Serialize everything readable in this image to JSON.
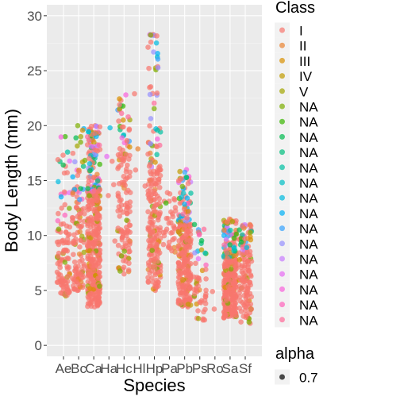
{
  "chart_data": {
    "type": "scatter",
    "subtype": "jitter",
    "xlabel": "Species",
    "ylabel": "Body Length (mm)",
    "ylim": [
      -1,
      31
    ],
    "y_ticks": [
      0,
      5,
      10,
      15,
      20,
      25,
      30
    ],
    "categories": [
      "Ae",
      "Bc",
      "Ca",
      "Ha",
      "Hc",
      "Hl",
      "Hp",
      "Pa",
      "Pb",
      "Ps",
      "Ro",
      "Sa",
      "Sf"
    ],
    "grid": true,
    "point_alpha": 0.7,
    "species": [
      {
        "code": "Ae",
        "n": 110,
        "min": 4.5,
        "max": 19.0,
        "q1": 6.0,
        "median": 8.0,
        "q3": 11.0
      },
      {
        "code": "Bc",
        "n": 120,
        "min": 5.0,
        "max": 20.0,
        "q1": 6.5,
        "median": 9.0,
        "q3": 13.0
      },
      {
        "code": "Ca",
        "n": 420,
        "min": 3.5,
        "max": 20.0,
        "q1": 6.5,
        "median": 9.5,
        "q3": 14.0
      },
      {
        "code": "Ha",
        "n": 6,
        "min": 9.5,
        "max": 19.8,
        "q1": 10.0,
        "median": 15.0,
        "q3": 17.0
      },
      {
        "code": "Hc",
        "n": 140,
        "min": 6.5,
        "max": 22.8,
        "q1": 10.0,
        "median": 14.0,
        "q3": 18.0
      },
      {
        "code": "Hl",
        "n": 4,
        "min": 14.5,
        "max": 22.9,
        "q1": 15.0,
        "median": 18.0,
        "q3": 20.0
      },
      {
        "code": "Hp",
        "n": 230,
        "min": 5.0,
        "max": 28.3,
        "q1": 9.0,
        "median": 12.0,
        "q3": 16.0
      },
      {
        "code": "Pa",
        "n": 35,
        "min": 8.5,
        "max": 13.9,
        "q1": 10.0,
        "median": 11.5,
        "q3": 12.5
      },
      {
        "code": "Pb",
        "n": 280,
        "min": 3.5,
        "max": 16.0,
        "q1": 6.0,
        "median": 8.5,
        "q3": 11.0
      },
      {
        "code": "Ps",
        "n": 55,
        "min": 2.3,
        "max": 11.0,
        "q1": 4.0,
        "median": 5.5,
        "q3": 7.0
      },
      {
        "code": "Ro",
        "n": 2,
        "min": 3.3,
        "max": 4.9,
        "q1": 3.5,
        "median": 4.0,
        "q3": 4.5
      },
      {
        "code": "Sa",
        "n": 320,
        "min": 2.5,
        "max": 11.5,
        "q1": 4.5,
        "median": 6.0,
        "q3": 8.0
      },
      {
        "code": "Sf",
        "n": 140,
        "min": 2.0,
        "max": 11.0,
        "q1": 4.5,
        "median": 6.5,
        "q3": 8.5
      }
    ],
    "legend": {
      "placement": "right",
      "color_title": "Class",
      "color_entries": [
        {
          "label": "I",
          "color": "#f8766d"
        },
        {
          "label": "II",
          "color": "#ea8331"
        },
        {
          "label": "III",
          "color": "#d89000"
        },
        {
          "label": "IV",
          "color": "#c09b00"
        },
        {
          "label": "V",
          "color": "#a3a500"
        },
        {
          "label": "NA",
          "color": "#7cae00"
        },
        {
          "label": "NA",
          "color": "#39b600"
        },
        {
          "label": "NA",
          "color": "#00bb4e"
        },
        {
          "label": "NA",
          "color": "#00bf7d"
        },
        {
          "label": "NA",
          "color": "#00c1a3"
        },
        {
          "label": "NA",
          "color": "#00bfc4"
        },
        {
          "label": "NA",
          "color": "#00bae0"
        },
        {
          "label": "NA",
          "color": "#00b0f6"
        },
        {
          "label": "NA",
          "color": "#35a2ff"
        },
        {
          "label": "NA",
          "color": "#9590ff"
        },
        {
          "label": "NA",
          "color": "#c77cff"
        },
        {
          "label": "NA",
          "color": "#e76bf3"
        },
        {
          "label": "NA",
          "color": "#fa62db"
        },
        {
          "label": "NA",
          "color": "#ff62bc"
        },
        {
          "label": "NA",
          "color": "#ff6a98"
        }
      ],
      "alpha_title": "alpha",
      "alpha_entries": [
        {
          "label": "0.7",
          "color": "#000000"
        }
      ]
    }
  }
}
